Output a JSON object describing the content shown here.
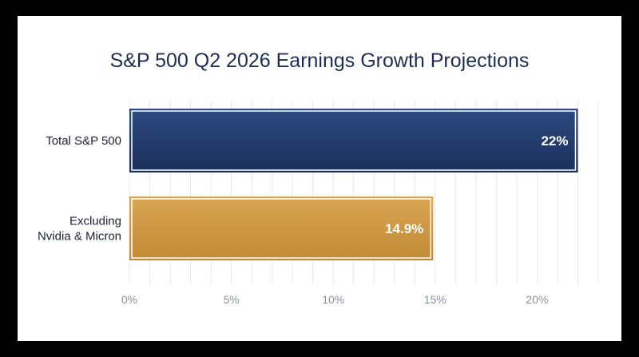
{
  "chart_data": {
    "type": "bar",
    "orientation": "horizontal",
    "title": "S&P 500 Q2 2026 Earnings Growth Projections",
    "xlabel": "",
    "ylabel": "",
    "categories": [
      [
        "Total S&P 500"
      ],
      [
        "Excluding",
        "Nvidia & Micron"
      ]
    ],
    "values": [
      22,
      14.9
    ],
    "data_labels": [
      "22%",
      "14.9%"
    ],
    "xlim": [
      0,
      23
    ],
    "ticks": [
      0,
      5,
      10,
      15,
      20
    ],
    "tick_labels": [
      "0%",
      "5%",
      "10%",
      "15%",
      "20%"
    ],
    "minor_gridline_step": 1,
    "grid": true,
    "legend": "none",
    "colors": {
      "bar_fills": [
        "url(#grad-navy)",
        "url(#grad-gold)"
      ],
      "navy_top": "#2c4b80",
      "navy_bottom": "#1b2f5b",
      "gold_top": "#d9a653",
      "gold_bottom": "#c18a34",
      "bar_inner_border": "#ffffff",
      "gridline": "#e6e8ec",
      "title": "#1e2d54",
      "frame": "#000000",
      "background": "#ffffff"
    }
  }
}
